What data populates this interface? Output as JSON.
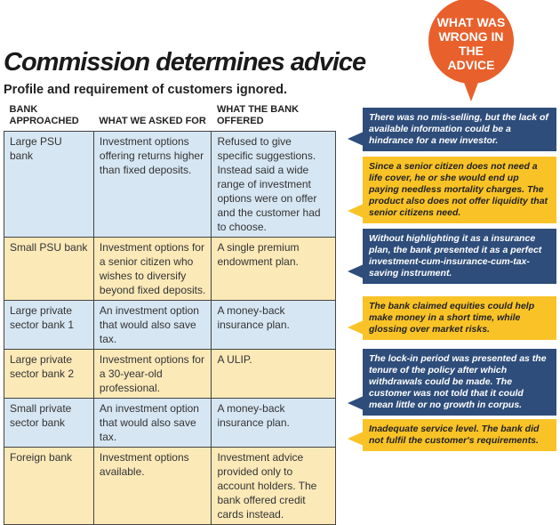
{
  "title": "Commission determines advice",
  "subtitle": "Profile and requirement of customers ignored.",
  "bubble": "WHAT WAS WRONG IN THE ADVICE",
  "colors": {
    "orange": "#e8602c",
    "callout_blue": "#2e4d7a",
    "callout_yellow": "#f9c327",
    "row_blue": "#d6e6f3",
    "row_yellow": "#fbe9b8"
  },
  "table": {
    "headers": [
      "BANK APPROACHED",
      "WHAT WE ASKED FOR",
      "WHAT THE BANK OFFERED"
    ],
    "rows": [
      [
        "Large PSU bank",
        "Investment options offering returns higher than fixed deposits.",
        "Refused to give specific suggestions. Instead said a wide range of investment options were on offer and the customer had to choose."
      ],
      [
        "Small PSU bank",
        "Investment options for a senior citizen who wishes to diversify beyond fixed deposits.",
        "A single premium endowment plan."
      ],
      [
        "Large private sector bank 1",
        "An investment option that would also save tax.",
        "A money-back insurance plan."
      ],
      [
        "Large private sector bank 2",
        "Investment options for a 30-year-old professional.",
        "A ULIP."
      ],
      [
        "Small private sector bank",
        "An investment option that would also save tax.",
        "A money-back insurance plan."
      ],
      [
        "Foreign bank",
        "Investment options available.",
        "Investment advice provided only to account holders. The bank offered credit cards instead."
      ]
    ]
  },
  "callouts": [
    "There was no mis-selling, but the lack of available information could be a hindrance for a new investor.",
    "Since a senior citizen does not need a life cover, he or she would end up paying needless mortality charges. The product also does not offer liquidity that senior citizens need.",
    "Without highlighting it as a insurance plan, the bank presented it as a perfect investment-cum-insurance-cum-tax-saving instrument.",
    "The bank claimed equities could help make money in a short time, while glossing over market risks.",
    "The lock-in period was presented as the tenure of the policy after which withdrawals could be made. The customer was not told that it could mean little or no growth in corpus.",
    "Inadequate service level. The bank did not fulfil the customer's requirements."
  ]
}
